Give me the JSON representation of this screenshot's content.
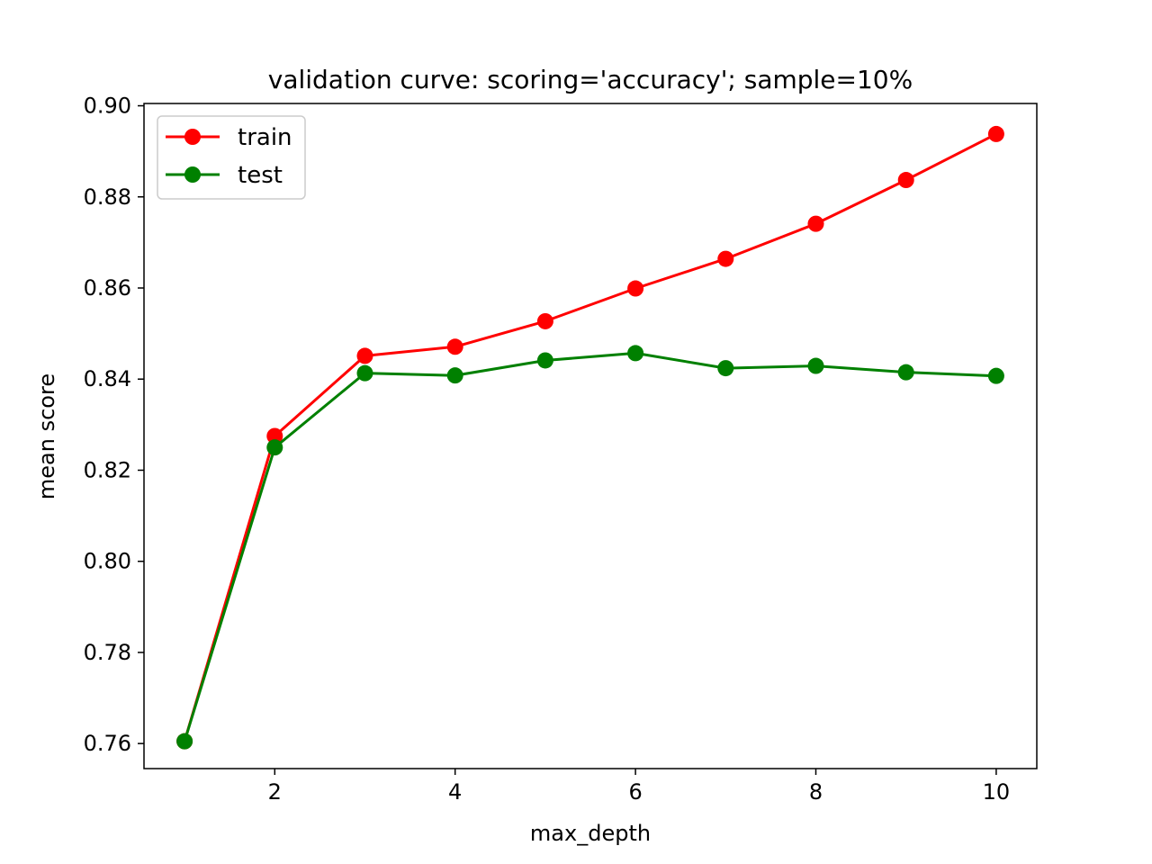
{
  "chart_data": {
    "type": "line",
    "title": "validation curve: scoring='accuracy'; sample=10%",
    "xlabel": "max_depth",
    "ylabel": "mean score",
    "xlim": [
      0.55,
      10.45
    ],
    "ylim": [
      0.7545,
      0.9005
    ],
    "xticks": [
      2,
      4,
      6,
      8,
      10
    ],
    "xtick_labels": [
      "2",
      "4",
      "6",
      "8",
      "10"
    ],
    "yticks": [
      0.76,
      0.78,
      0.8,
      0.82,
      0.84,
      0.86,
      0.88,
      0.9
    ],
    "ytick_labels": [
      "0.76",
      "0.78",
      "0.80",
      "0.82",
      "0.84",
      "0.86",
      "0.88",
      "0.90"
    ],
    "grid": false,
    "legend": "upper left",
    "x": [
      1,
      2,
      3,
      4,
      5,
      6,
      7,
      8,
      9,
      10
    ],
    "series": [
      {
        "name": "train",
        "color": "#ff0000",
        "marker": "circle",
        "values": [
          0.7605,
          0.8275,
          0.8451,
          0.8471,
          0.8527,
          0.8599,
          0.8664,
          0.8741,
          0.8837,
          0.8938
        ]
      },
      {
        "name": "test",
        "color": "#008000",
        "marker": "circle",
        "values": [
          0.7605,
          0.825,
          0.8413,
          0.8408,
          0.8441,
          0.8457,
          0.8424,
          0.8429,
          0.8415,
          0.8407
        ]
      }
    ]
  }
}
